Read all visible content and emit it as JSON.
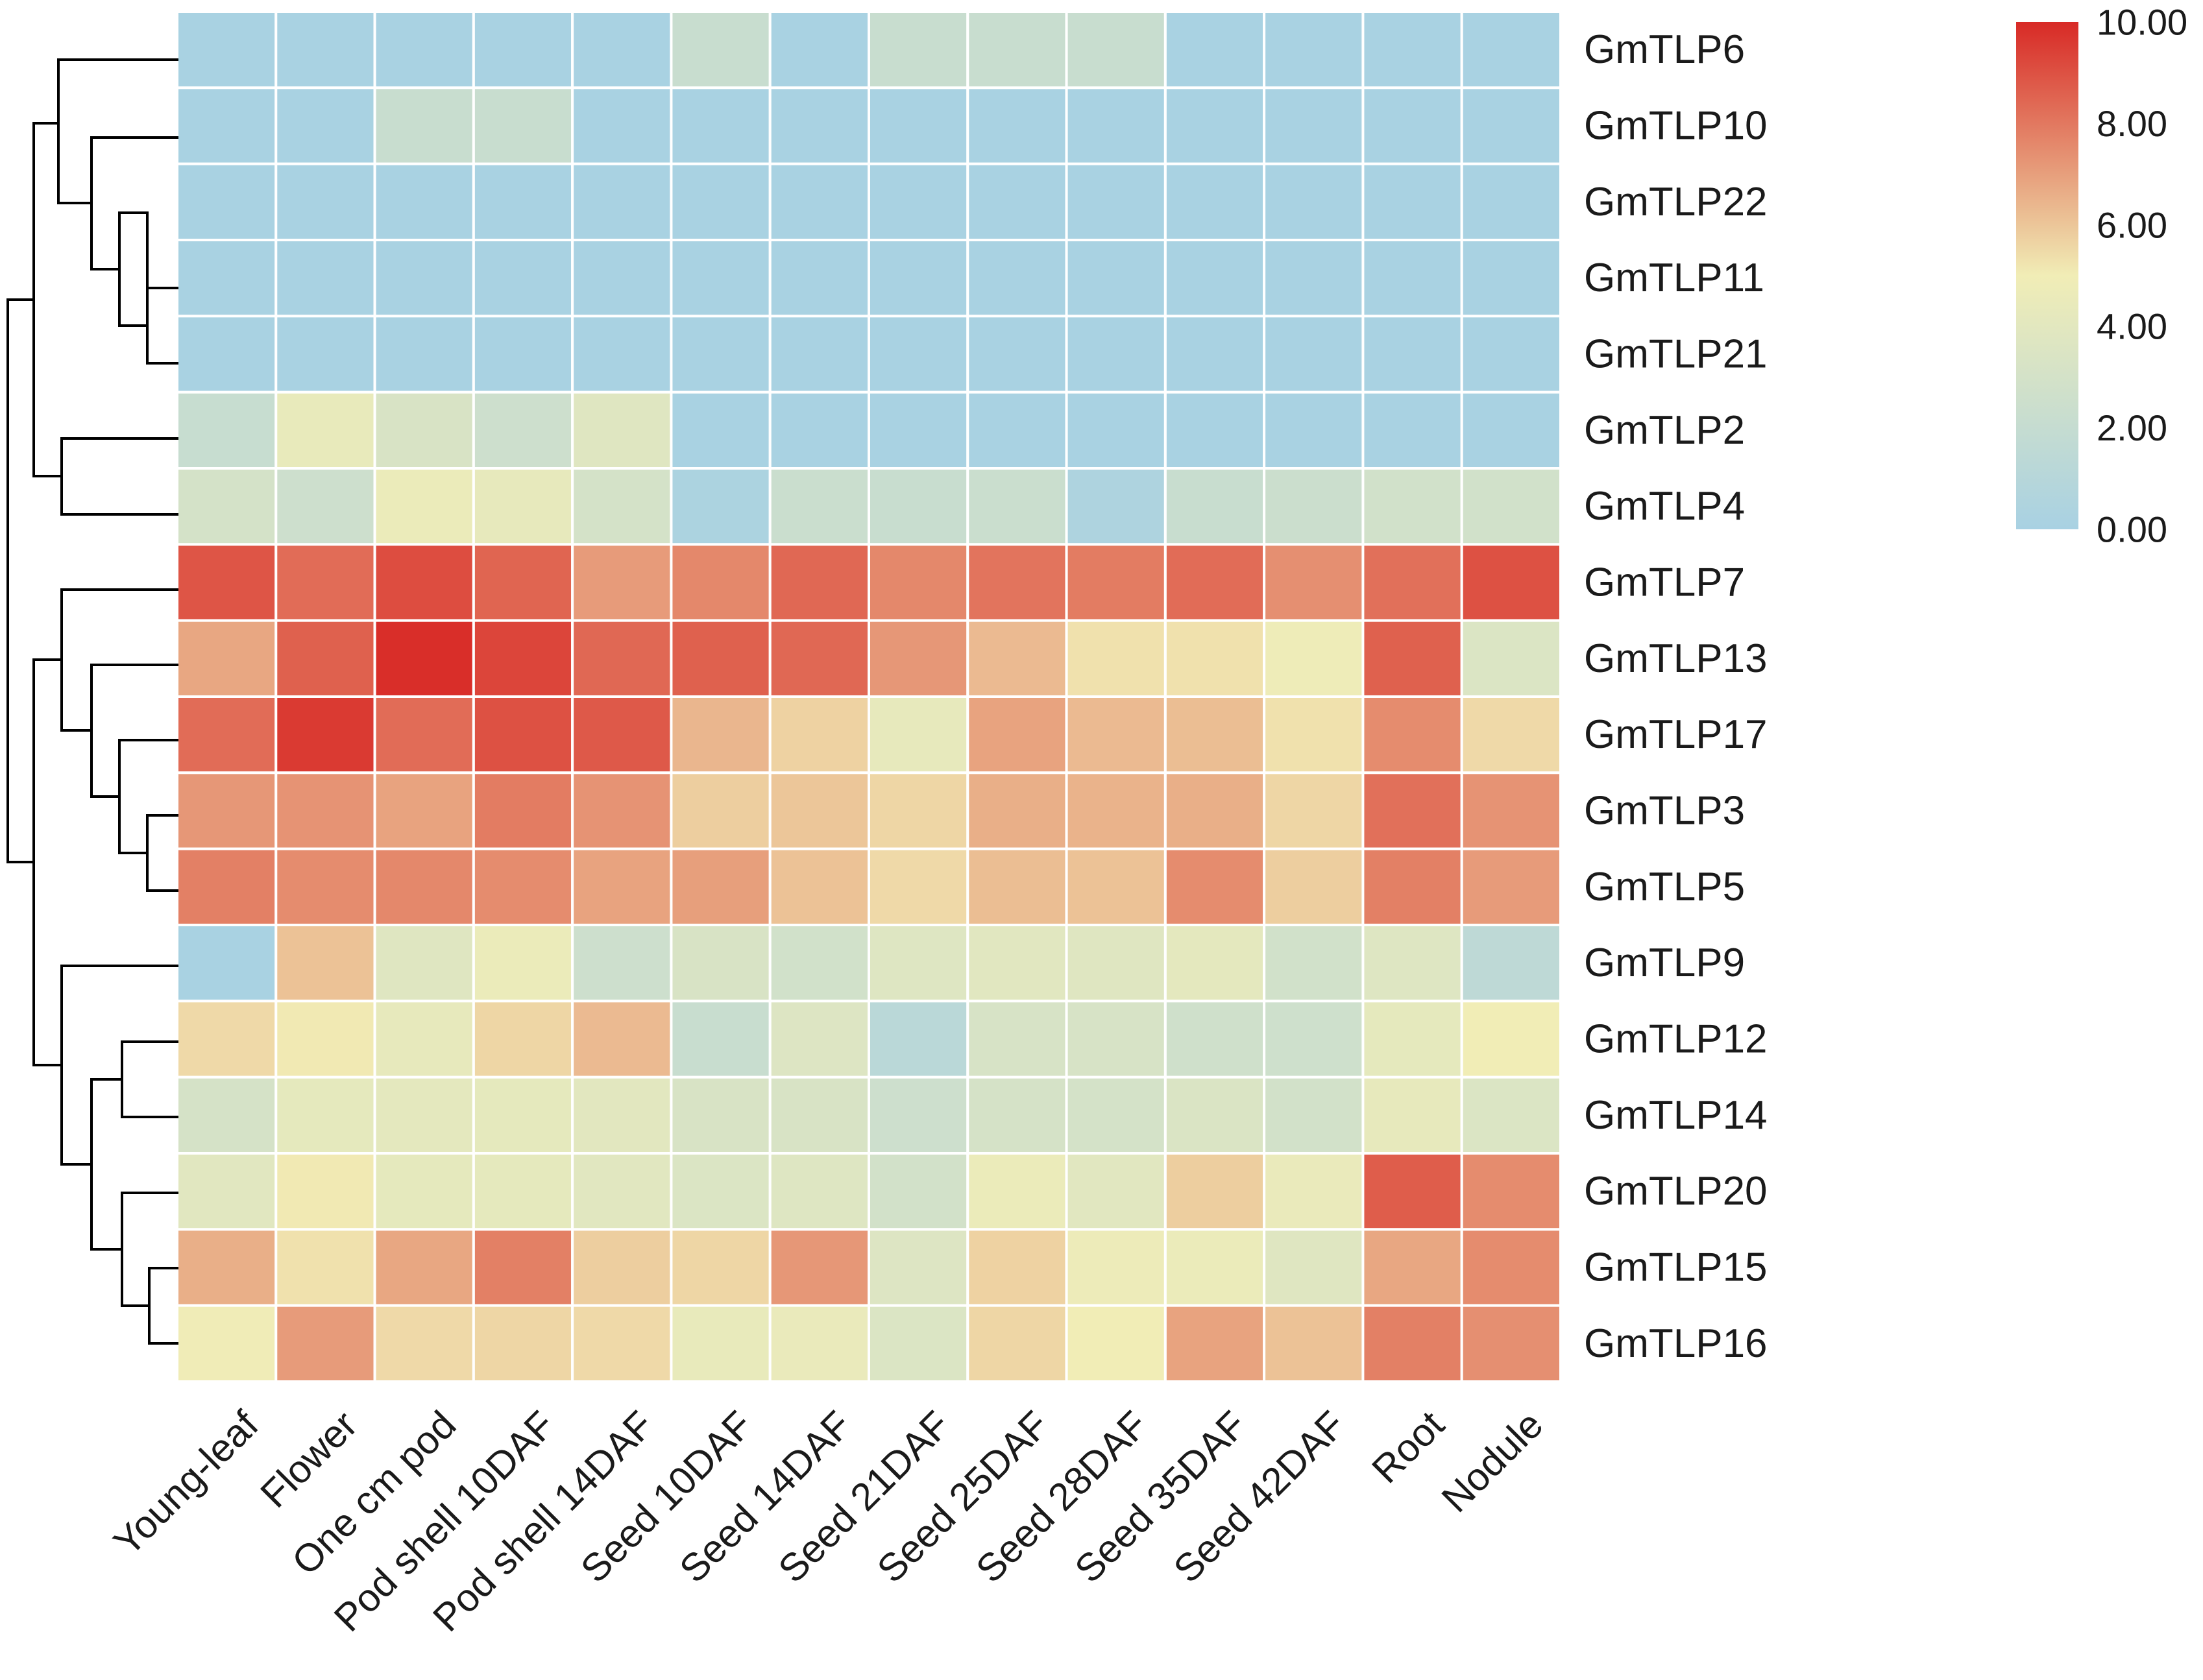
{
  "chart_data": {
    "type": "heatmap",
    "title": "",
    "xlabel": "",
    "ylabel": "",
    "columns": [
      "Young-leaf",
      "Flower",
      "One cm pod",
      "Pod shell 10DAF",
      "Pod shell 14DAF",
      "Seed 10DAF",
      "Seed 14DAF",
      "Seed 21DAF",
      "Seed 25DAF",
      "Seed 28DAF",
      "Seed 35DAF",
      "Seed 42DAF",
      "Root",
      "Nodule"
    ],
    "rows": [
      "GmTLP6",
      "GmTLP10",
      "GmTLP22",
      "GmTLP11",
      "GmTLP21",
      "GmTLP2",
      "GmTLP4",
      "GmTLP7",
      "GmTLP13",
      "GmTLP17",
      "GmTLP3",
      "GmTLP5",
      "GmTLP9",
      "GmTLP12",
      "GmTLP14",
      "GmTLP20",
      "GmTLP15",
      "GmTLP16"
    ],
    "values": [
      [
        0.1,
        0.1,
        0.1,
        0.1,
        0.1,
        2.2,
        0.1,
        2.2,
        2.2,
        2.2,
        0.1,
        0.1,
        0.1,
        0.1
      ],
      [
        0.1,
        0.1,
        2.2,
        2.2,
        0.1,
        0.1,
        0.1,
        0.1,
        0.1,
        0.1,
        0.1,
        0.1,
        0.1,
        0.1
      ],
      [
        0.1,
        0.1,
        0.1,
        0.1,
        0.1,
        0.1,
        0.1,
        0.1,
        0.1,
        0.1,
        0.1,
        0.1,
        0.1,
        0.1
      ],
      [
        0.1,
        0.1,
        0.1,
        0.1,
        0.1,
        0.1,
        0.1,
        0.1,
        0.1,
        0.1,
        0.1,
        0.1,
        0.1,
        0.1
      ],
      [
        0.1,
        0.1,
        0.1,
        0.1,
        0.1,
        0.1,
        0.1,
        0.1,
        0.1,
        0.1,
        0.1,
        0.1,
        0.1,
        0.1
      ],
      [
        2.1,
        4.4,
        3.3,
        2.5,
        3.8,
        0.1,
        0.1,
        0.1,
        0.1,
        0.1,
        0.1,
        0.1,
        0.1,
        0.1
      ],
      [
        3.0,
        2.5,
        4.6,
        4.3,
        3.0,
        0.3,
        2.3,
        2.2,
        2.3,
        0.4,
        2.2,
        2.4,
        2.8,
        2.8
      ],
      [
        8.9,
        8.3,
        9.1,
        8.5,
        7.1,
        7.6,
        8.4,
        7.6,
        8.1,
        7.9,
        8.3,
        7.4,
        8.2,
        9.0
      ],
      [
        6.8,
        8.6,
        9.9,
        9.3,
        8.4,
        8.6,
        8.4,
        7.2,
        6.3,
        5.3,
        5.3,
        4.8,
        8.6,
        3.5
      ],
      [
        8.3,
        9.6,
        8.3,
        9.0,
        8.8,
        6.4,
        5.7,
        4.3,
        6.9,
        6.3,
        6.2,
        5.3,
        7.5,
        5.5
      ],
      [
        7.2,
        7.3,
        6.9,
        7.9,
        7.3,
        5.8,
        6.0,
        5.6,
        6.6,
        6.5,
        6.6,
        5.6,
        8.2,
        7.3
      ],
      [
        7.8,
        7.5,
        7.6,
        7.5,
        6.9,
        7.0,
        6.1,
        5.5,
        6.2,
        6.1,
        7.5,
        5.8,
        7.8,
        7.1
      ],
      [
        0.1,
        6.1,
        3.8,
        4.6,
        2.5,
        3.3,
        2.8,
        3.7,
        3.9,
        3.8,
        4.1,
        2.8,
        3.7,
        1.5
      ],
      [
        5.5,
        5.1,
        4.3,
        5.6,
        6.3,
        2.2,
        3.6,
        1.2,
        3.2,
        3.2,
        2.7,
        2.6,
        4.2,
        5.0
      ],
      [
        3.1,
        4.2,
        4.1,
        4.2,
        4.0,
        3.3,
        3.3,
        2.5,
        3.1,
        3.0,
        3.4,
        2.9,
        4.3,
        3.5
      ],
      [
        3.9,
        5.1,
        4.2,
        4.2,
        3.9,
        3.5,
        3.7,
        2.9,
        4.6,
        3.9,
        5.8,
        4.5,
        8.7,
        7.5
      ],
      [
        6.6,
        5.3,
        6.8,
        7.8,
        5.8,
        5.6,
        7.2,
        3.6,
        5.7,
        4.7,
        4.6,
        3.8,
        6.8,
        7.5
      ],
      [
        4.9,
        7.1,
        5.5,
        5.6,
        5.5,
        4.4,
        4.5,
        3.5,
        5.6,
        5.0,
        6.9,
        6.1,
        7.8,
        7.4
      ]
    ],
    "colorbar": {
      "min": 0.0,
      "max": 10.0,
      "ticks": [
        "10.00",
        "8.00",
        "6.00",
        "4.00",
        "2.00",
        "0.00"
      ],
      "colors": [
        "#a8d1e3",
        "#f1edb6",
        "#d82a26"
      ]
    },
    "row_dendrogram": true,
    "grid_color": "#ffffff"
  }
}
